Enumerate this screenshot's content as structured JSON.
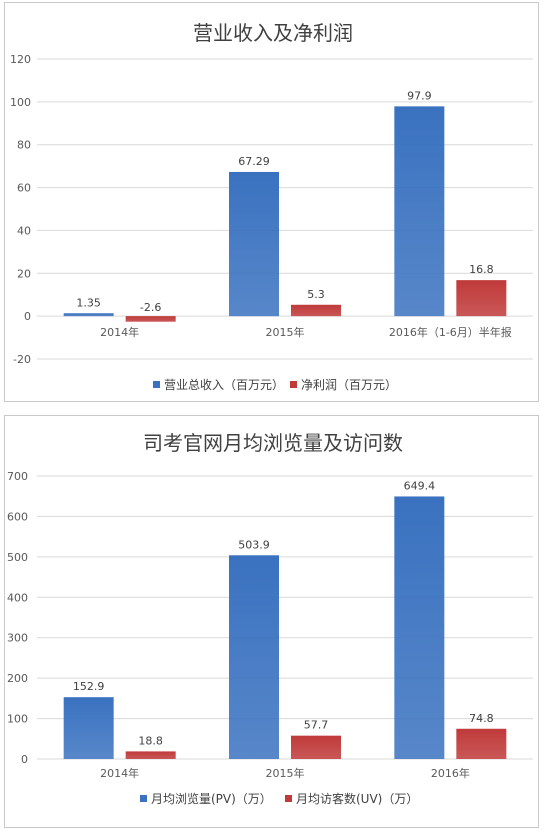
{
  "chart_data": [
    {
      "type": "bar",
      "title": "营业收入及净利润",
      "categories": [
        "2014年",
        "2015年",
        "2016年（1-6月）半年报"
      ],
      "series": [
        {
          "name": "营业总收入（百万元）",
          "values": [
            1.35,
            67.29,
            97.9
          ],
          "labels": [
            "1.35",
            "67.29",
            "97.9"
          ],
          "color": "#3a72c0"
        },
        {
          "name": "净利润（百万元）",
          "values": [
            -2.6,
            5.3,
            16.8
          ],
          "labels": [
            "-2.6",
            "5.3",
            "16.8"
          ],
          "color": "#c03a3a"
        }
      ],
      "ylim": [
        -20,
        120
      ],
      "yticks": [
        -20,
        0,
        20,
        40,
        60,
        80,
        100,
        120
      ],
      "grid": true,
      "legend": "bottom"
    },
    {
      "type": "bar",
      "title": "司考官网月均浏览量及访问数",
      "categories": [
        "2014年",
        "2015年",
        "2016年"
      ],
      "series": [
        {
          "name": "月均浏览量(PV)（万）",
          "values": [
            152.9,
            503.9,
            649.4
          ],
          "labels": [
            "152.9",
            "503.9",
            "649.4"
          ],
          "color": "#3a72c0"
        },
        {
          "name": "月均访客数(UV)（万）",
          "values": [
            18.8,
            57.7,
            74.8
          ],
          "labels": [
            "18.8",
            "57.7",
            "74.8"
          ],
          "color": "#c03a3a"
        }
      ],
      "ylim": [
        0,
        700
      ],
      "yticks": [
        0,
        100,
        200,
        300,
        400,
        500,
        600,
        700
      ],
      "grid": true,
      "legend": "bottom"
    }
  ]
}
